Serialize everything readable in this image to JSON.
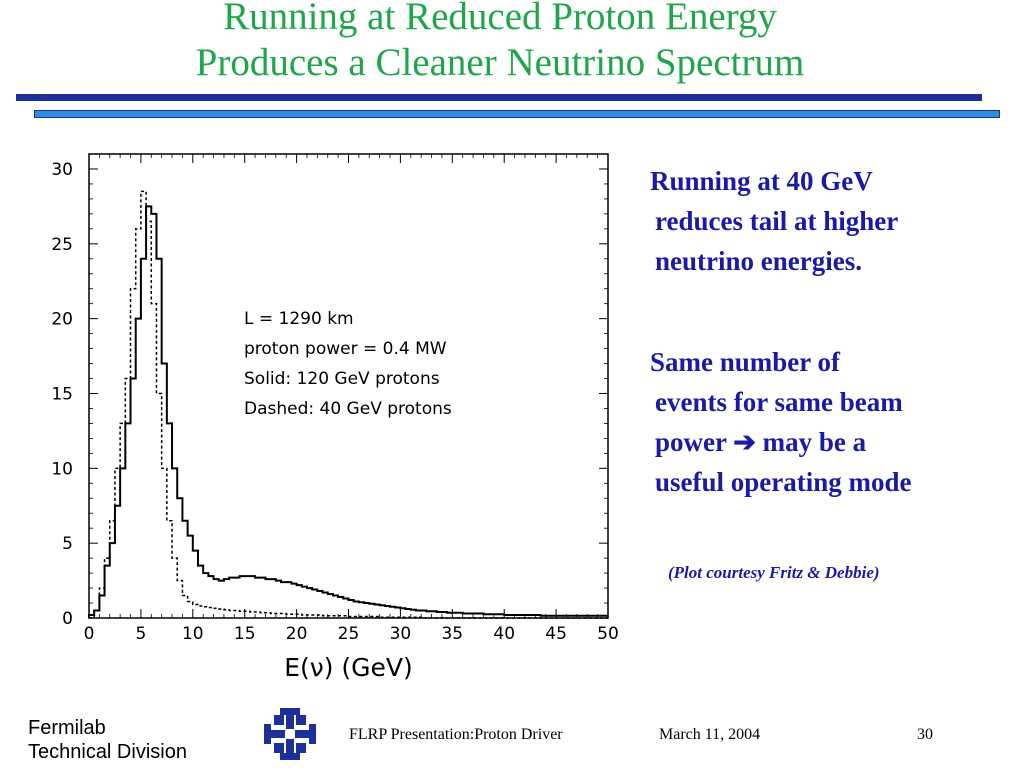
{
  "slide": {
    "title_line1": "Running at Reduced Proton Energy",
    "title_line2": "Produces a Cleaner Neutrino Spectrum",
    "bullet1": [
      "Running at 40 GeV",
      "reduces tail at higher",
      "neutrino energies."
    ],
    "bullet2": [
      "Same number of",
      "events for same beam",
      "power ➔ may be a",
      "useful operating mode"
    ],
    "credit": "(Plot courtesy Fritz & Debbie)",
    "footer_org_line1": "Fermilab",
    "footer_org_line2": "Technical Division",
    "footer_presentation": "FLRP Presentation:Proton Driver",
    "footer_date": "March 11, 2004",
    "page_number": "30",
    "title_color": "#1fa64a",
    "text_color": "#1a1aa6"
  },
  "chart_data": {
    "type": "line",
    "xlabel": "E(ν) (GeV)",
    "ylabel": "",
    "xlim": [
      0,
      50
    ],
    "ylim": [
      0,
      31
    ],
    "xticks": [
      0,
      5,
      10,
      15,
      20,
      25,
      30,
      35,
      40,
      45,
      50
    ],
    "yticks": [
      0,
      5,
      10,
      15,
      20,
      25,
      30
    ],
    "annotations": [
      "L = 1290 km",
      "proton power = 0.4 MW",
      "Solid: 120 GeV protons",
      "Dashed: 40 GeV protons"
    ],
    "bin_width": 0.5,
    "series": [
      {
        "name": "Solid: 120 GeV protons",
        "style": "solid",
        "values": [
          0.2,
          0.5,
          1.5,
          3.5,
          5,
          7.5,
          10,
          13,
          16,
          20,
          24,
          27.5,
          27,
          24,
          17,
          13,
          10,
          8,
          6.5,
          5.5,
          4.5,
          3.5,
          3,
          2.8,
          2.6,
          2.5,
          2.6,
          2.7,
          2.7,
          2.8,
          2.8,
          2.8,
          2.7,
          2.7,
          2.6,
          2.6,
          2.5,
          2.4,
          2.4,
          2.3,
          2.2,
          2.1,
          2,
          1.9,
          1.8,
          1.7,
          1.6,
          1.5,
          1.4,
          1.3,
          1.2,
          1.1,
          1.05,
          1,
          0.95,
          0.9,
          0.85,
          0.8,
          0.75,
          0.7,
          0.65,
          0.6,
          0.55,
          0.5,
          0.5,
          0.45,
          0.45,
          0.4,
          0.4,
          0.35,
          0.35,
          0.35,
          0.3,
          0.3,
          0.3,
          0.3,
          0.25,
          0.25,
          0.25,
          0.25,
          0.2,
          0.2,
          0.2,
          0.2,
          0.2,
          0.2,
          0.2,
          0.15,
          0.15,
          0.15,
          0.15,
          0.15,
          0.15,
          0.15,
          0.15,
          0.15,
          0.15,
          0.15,
          0.15,
          0.15
        ]
      },
      {
        "name": "Dashed: 40 GeV protons",
        "style": "dashed",
        "values": [
          0,
          0.5,
          2,
          4,
          6.5,
          10,
          13,
          16,
          22,
          26,
          28.5,
          26.5,
          21,
          15,
          10,
          6.5,
          4,
          2.5,
          1.5,
          1.1,
          0.9,
          0.8,
          0.75,
          0.7,
          0.65,
          0.6,
          0.55,
          0.5,
          0.5,
          0.45,
          0.45,
          0.4,
          0.4,
          0.35,
          0.35,
          0.3,
          0.3,
          0.3,
          0.25,
          0.25,
          0.25,
          0.2,
          0.2,
          0.2,
          0.2,
          0.15,
          0.15,
          0.15,
          0.15,
          0.15,
          0.1,
          0.1,
          0.1,
          0.1,
          0.1,
          0.1,
          0.05,
          0.05,
          0.05,
          0.05,
          0.05,
          0.05,
          0.05,
          0.05,
          0,
          0,
          0,
          0,
          0,
          0,
          0,
          0,
          0,
          0,
          0,
          0,
          0,
          0,
          0,
          0,
          0,
          0,
          0,
          0,
          0,
          0,
          0,
          0,
          0,
          0,
          0,
          0,
          0,
          0,
          0,
          0,
          0,
          0,
          0,
          0
        ]
      }
    ]
  }
}
